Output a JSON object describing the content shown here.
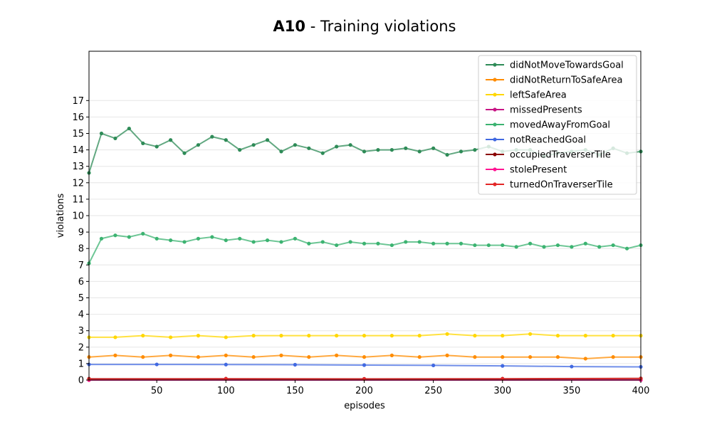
{
  "chart_data": {
    "type": "line",
    "title_bold": "A10",
    "title_rest": " - Training violations",
    "xlabel": "episodes",
    "ylabel": "violations",
    "xlim": [
      1,
      400
    ],
    "ylim": [
      0,
      20
    ],
    "xticks": [
      50,
      100,
      150,
      200,
      250,
      300,
      350,
      400
    ],
    "yticks": [
      0,
      1,
      2,
      3,
      4,
      5,
      6,
      7,
      8,
      9,
      10,
      11,
      12,
      13,
      14,
      15,
      16,
      17
    ],
    "grid": "horizontal",
    "legend_position": "top-right",
    "series": [
      {
        "name": "didNotMoveTowardsGoal",
        "color": "#2e8b57",
        "x": [
          1,
          10,
          20,
          30,
          40,
          50,
          60,
          70,
          80,
          90,
          100,
          110,
          120,
          130,
          140,
          150,
          160,
          170,
          180,
          190,
          200,
          210,
          220,
          230,
          240,
          250,
          260,
          270,
          280,
          290,
          300,
          310,
          320,
          330,
          340,
          350,
          360,
          370,
          380,
          390,
          400
        ],
        "values": [
          12.6,
          15.0,
          14.7,
          15.3,
          14.4,
          14.2,
          14.6,
          13.8,
          14.3,
          14.8,
          14.6,
          14.0,
          14.3,
          14.6,
          13.9,
          14.3,
          14.1,
          13.8,
          14.2,
          14.3,
          13.9,
          14.0,
          14.0,
          14.1,
          13.9,
          14.1,
          13.7,
          13.9,
          14.0,
          14.2,
          13.9,
          14.0,
          14.0,
          13.6,
          13.8,
          13.9,
          14.0,
          13.7,
          14.1,
          13.8,
          13.9
        ]
      },
      {
        "name": "didNotReturnToSafeArea",
        "color": "#ff8c00",
        "x": [
          1,
          20,
          40,
          60,
          80,
          100,
          120,
          140,
          160,
          180,
          200,
          220,
          240,
          260,
          280,
          300,
          320,
          340,
          360,
          380,
          400
        ],
        "values": [
          1.4,
          1.5,
          1.4,
          1.5,
          1.4,
          1.5,
          1.4,
          1.5,
          1.4,
          1.5,
          1.4,
          1.5,
          1.4,
          1.5,
          1.4,
          1.4,
          1.4,
          1.4,
          1.3,
          1.4,
          1.4
        ]
      },
      {
        "name": "leftSafeArea",
        "color": "#ffd700",
        "x": [
          1,
          20,
          40,
          60,
          80,
          100,
          120,
          140,
          160,
          180,
          200,
          220,
          240,
          260,
          280,
          300,
          320,
          340,
          360,
          380,
          400
        ],
        "values": [
          2.6,
          2.6,
          2.7,
          2.6,
          2.7,
          2.6,
          2.7,
          2.7,
          2.7,
          2.7,
          2.7,
          2.7,
          2.7,
          2.8,
          2.7,
          2.7,
          2.8,
          2.7,
          2.7,
          2.7,
          2.7
        ]
      },
      {
        "name": "missedPresents",
        "color": "#c71585",
        "x": [
          1,
          400
        ],
        "values": [
          0,
          0
        ]
      },
      {
        "name": "movedAwayFromGoal",
        "color": "#3cb371",
        "x": [
          1,
          10,
          20,
          30,
          40,
          50,
          60,
          70,
          80,
          90,
          100,
          110,
          120,
          130,
          140,
          150,
          160,
          170,
          180,
          190,
          200,
          210,
          220,
          230,
          240,
          250,
          260,
          270,
          280,
          290,
          300,
          310,
          320,
          330,
          340,
          350,
          360,
          370,
          380,
          390,
          400
        ],
        "values": [
          7.1,
          8.6,
          8.8,
          8.7,
          8.9,
          8.6,
          8.5,
          8.4,
          8.6,
          8.7,
          8.5,
          8.6,
          8.4,
          8.5,
          8.4,
          8.6,
          8.3,
          8.4,
          8.2,
          8.4,
          8.3,
          8.3,
          8.2,
          8.4,
          8.4,
          8.3,
          8.3,
          8.3,
          8.2,
          8.2,
          8.2,
          8.1,
          8.3,
          8.1,
          8.2,
          8.1,
          8.3,
          8.1,
          8.2,
          8.0,
          8.2
        ]
      },
      {
        "name": "notReachedGoal",
        "color": "#4169e1",
        "x": [
          1,
          50,
          100,
          150,
          200,
          250,
          300,
          350,
          400
        ],
        "values": [
          0.95,
          0.95,
          0.94,
          0.93,
          0.91,
          0.89,
          0.86,
          0.82,
          0.8
        ]
      },
      {
        "name": "occupiedTraverserTile",
        "color": "#8b0000",
        "x": [
          1,
          100,
          200,
          300,
          400
        ],
        "values": [
          0.08,
          0.08,
          0.07,
          0.08,
          0.1
        ]
      },
      {
        "name": "stolePresent",
        "color": "#ff1493",
        "x": [
          1,
          400
        ],
        "values": [
          0,
          0
        ]
      },
      {
        "name": "turnedOnTraverserTile",
        "color": "#e32626",
        "x": [
          1,
          100,
          200,
          300,
          400
        ],
        "values": [
          0.06,
          0.07,
          0.06,
          0.07,
          0.09
        ]
      }
    ]
  }
}
